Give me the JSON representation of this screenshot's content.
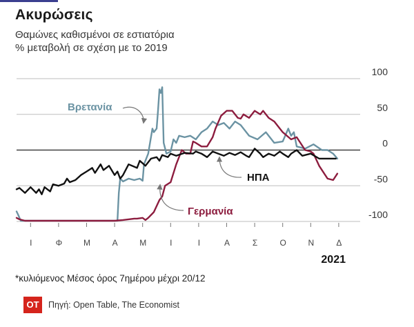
{
  "title": "Ακυρώσεις",
  "subtitle_line1": "Θαμώνες καθισμένοι σε εστιατόρια",
  "subtitle_line2": "% μεταβολή σε σχέση με το 2019",
  "note": "*κυλιόμενος Μέσος όρος 7ημέρου μέχρι 20/12",
  "logo_text": "OT",
  "source": "Πηγή: Open Table, The Economist",
  "colors": {
    "uk": "#6b93a3",
    "germany": "#8c1c3e",
    "usa": "#111111",
    "grid": "#bdbdbd",
    "accent": "#3b3f8f",
    "logo": "#d5241c"
  },
  "chart_data": {
    "type": "line",
    "year_label": "2021",
    "x_categories": [
      "Ι",
      "Φ",
      "Μ",
      "Α",
      "Μ",
      "Ι",
      "Ι",
      "Α",
      "Σ",
      "Ο",
      "Ν",
      "Δ"
    ],
    "y_ticks": [
      "100",
      "50",
      "0",
      "-50",
      "-100"
    ],
    "y_tick_values": [
      100,
      50,
      0,
      -50,
      -100
    ],
    "ylim": [
      -100,
      100
    ],
    "series": [
      {
        "name": "Βρετανία",
        "key": "uk",
        "x": [
          0.0,
          0.05,
          0.15,
          1.0,
          2.0,
          3.0,
          3.6,
          3.65,
          3.7,
          3.8,
          4.0,
          4.2,
          4.4,
          4.5,
          4.55,
          4.7,
          4.85,
          4.9,
          5.0,
          5.05,
          5.1,
          5.15,
          5.2,
          5.25,
          5.35,
          5.5,
          5.6,
          5.7,
          5.8,
          6.0,
          6.2,
          6.4,
          6.6,
          6.8,
          7.0,
          7.2,
          7.4,
          7.6,
          7.8,
          8.0,
          8.3,
          8.6,
          8.9,
          9.2,
          9.5,
          9.7,
          9.8,
          9.9,
          10.0,
          10.3,
          10.6,
          10.9,
          11.1,
          11.3,
          11.45
        ],
        "values": [
          -86,
          -90,
          -99,
          -99,
          -99,
          -99,
          -99,
          -60,
          -40,
          -44,
          -40,
          -42,
          -40,
          -43,
          -20,
          -5,
          30,
          25,
          30,
          55,
          85,
          80,
          88,
          10,
          -5,
          -2,
          15,
          10,
          20,
          18,
          20,
          15,
          25,
          30,
          40,
          35,
          38,
          30,
          40,
          35,
          20,
          15,
          25,
          10,
          12,
          30,
          20,
          25,
          5,
          2,
          8,
          0,
          0,
          -5,
          -12
        ]
      },
      {
        "name": "Γερμανία",
        "key": "germany",
        "x": [
          0.0,
          0.1,
          0.3,
          1.0,
          2.0,
          3.0,
          3.5,
          3.8,
          4.0,
          4.2,
          4.3,
          4.5,
          4.6,
          4.7,
          4.9,
          5.1,
          5.2,
          5.3,
          5.5,
          5.7,
          5.9,
          6.05,
          6.2,
          6.3,
          6.4,
          6.6,
          6.8,
          7.0,
          7.1,
          7.3,
          7.5,
          7.7,
          7.9,
          8.0,
          8.1,
          8.3,
          8.5,
          8.7,
          8.8,
          9.0,
          9.2,
          9.5,
          9.8,
          10.0,
          10.3,
          10.5,
          10.6,
          10.8,
          11.1,
          11.3,
          11.45
        ],
        "values": [
          -95,
          -97,
          -99,
          -99,
          -99,
          -99,
          -99,
          -98,
          -97,
          -96,
          -96,
          -95,
          -98,
          -95,
          -87,
          -70,
          -65,
          -50,
          -45,
          -20,
          0,
          -5,
          -5,
          12,
          10,
          5,
          5,
          18,
          30,
          48,
          55,
          55,
          45,
          44,
          50,
          45,
          55,
          50,
          55,
          45,
          40,
          25,
          15,
          18,
          0,
          -2,
          -5,
          -22,
          -40,
          -42,
          -33
        ]
      },
      {
        "name": "ΗΠΑ",
        "key": "usa",
        "x": [
          0.0,
          0.1,
          0.3,
          0.5,
          0.7,
          0.8,
          0.9,
          1.0,
          1.2,
          1.3,
          1.5,
          1.7,
          1.8,
          1.9,
          2.1,
          2.3,
          2.5,
          2.7,
          2.8,
          3.0,
          3.1,
          3.3,
          3.5,
          3.6,
          3.7,
          3.8,
          4.0,
          4.3,
          4.4,
          4.6,
          4.8,
          5.0,
          5.1,
          5.2,
          5.4,
          5.5,
          5.7,
          6.0,
          6.3,
          6.4,
          6.6,
          6.8,
          7.0,
          7.2,
          7.4,
          7.6,
          7.8,
          8.0,
          8.2,
          8.3,
          8.5,
          8.7,
          8.8,
          9.0,
          9.2,
          9.4,
          9.5,
          9.7,
          9.8,
          10.0,
          10.2,
          10.5,
          10.8,
          11.1,
          11.4
        ],
        "values": [
          -55,
          -53,
          -60,
          -52,
          -60,
          -55,
          -62,
          -52,
          -58,
          -48,
          -50,
          -47,
          -40,
          -45,
          -42,
          -35,
          -30,
          -25,
          -32,
          -20,
          -28,
          -22,
          -35,
          -30,
          -40,
          -35,
          -20,
          -25,
          -15,
          -22,
          -12,
          -10,
          -15,
          -7,
          -10,
          -5,
          -8,
          -4,
          -5,
          -2,
          -5,
          -10,
          -2,
          -5,
          -8,
          -4,
          -7,
          -3,
          -8,
          -10,
          2,
          -5,
          -10,
          -5,
          -8,
          -2,
          -5,
          -10,
          -5,
          0,
          -8,
          -5,
          -12,
          -12,
          -12
        ]
      }
    ],
    "series_label_positions": {
      "uk": "top-left",
      "germany": "bottom",
      "usa": "right"
    }
  }
}
